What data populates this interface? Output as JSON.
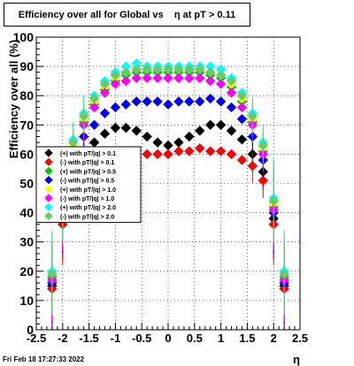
{
  "title": "Efficiency over all for Global vs    η at pT > 0.11",
  "timestamp": "Fri Feb 18 17:27:33 2022",
  "chart_data": {
    "type": "scatter",
    "xlabel": "η",
    "ylabel": "Efficiency over all (%)",
    "xlim": [
      -2.5,
      2.5
    ],
    "ylim": [
      0,
      100
    ],
    "xticks": [
      "-2.5",
      "-2",
      "-1.5",
      "-1",
      "-0.5",
      "0",
      "0.5",
      "1",
      "1.5",
      "2",
      "2.5"
    ],
    "yticks": [
      "0",
      "10",
      "20",
      "30",
      "40",
      "50",
      "60",
      "70",
      "80",
      "90",
      "100"
    ],
    "grid": true,
    "legend_position": "left-middle",
    "series": [
      {
        "name": "(+) with pT/|q| > 0.1",
        "color": "#000000",
        "x": [
          -2.2,
          -2.0,
          -1.8,
          -1.6,
          -1.4,
          -1.2,
          -1.0,
          -0.8,
          -0.6,
          -0.4,
          -0.2,
          0.0,
          0.2,
          0.4,
          0.6,
          0.8,
          1.0,
          1.2,
          1.4,
          1.6,
          1.8,
          2.0,
          2.2
        ],
        "y": [
          15,
          38,
          55,
          60,
          64,
          67,
          69,
          69,
          68,
          66,
          64,
          63,
          64,
          66,
          68,
          70,
          70,
          68,
          65,
          60,
          54,
          38,
          15
        ]
      },
      {
        "name": "(-) with pT/|q| > 0.1",
        "color": "#ff0000",
        "x": [
          -2.2,
          -2.0,
          -1.8,
          -1.6,
          -1.4,
          -1.2,
          -1.0,
          -0.8,
          -0.6,
          -0.4,
          -0.2,
          0.0,
          0.2,
          0.4,
          0.6,
          0.8,
          1.0,
          1.2,
          1.4,
          1.6,
          1.8,
          2.0,
          2.2
        ],
        "y": [
          14,
          36,
          52,
          56,
          59,
          60,
          61,
          61,
          60,
          60,
          60,
          60,
          61,
          61,
          62,
          61,
          61,
          60,
          58,
          56,
          51,
          36,
          14
        ]
      },
      {
        "name": "(+) with pT/|q| > 0.5",
        "color": "#00cc00",
        "x": [
          -2.2,
          -2.0,
          -1.8,
          -1.6,
          -1.4,
          -1.2,
          -1.0,
          -0.8,
          -0.6,
          -0.4,
          -0.2,
          0.0,
          0.2,
          0.4,
          0.6,
          0.8,
          1.0,
          1.2,
          1.4,
          1.6,
          1.8,
          2.0,
          2.2
        ],
        "y": [
          18,
          42,
          62,
          71,
          77,
          82,
          85,
          87,
          88,
          88,
          88,
          88,
          88,
          88,
          88,
          87,
          86,
          83,
          78,
          71,
          61,
          42,
          18
        ]
      },
      {
        "name": "(-) with pT/|q| > 0.5",
        "color": "#0000ff",
        "x": [
          -2.2,
          -2.0,
          -1.8,
          -1.6,
          -1.4,
          -1.2,
          -1.0,
          -0.8,
          -0.6,
          -0.4,
          -0.2,
          0.0,
          0.2,
          0.4,
          0.6,
          0.8,
          1.0,
          1.2,
          1.4,
          1.6,
          1.8,
          2.0,
          2.2
        ],
        "y": [
          16,
          40,
          60,
          66,
          70,
          74,
          76,
          77,
          78,
          78,
          78,
          77,
          78,
          78,
          78,
          79,
          78,
          76,
          72,
          66,
          58,
          40,
          16
        ]
      },
      {
        "name": "(+) with pT/|q| > 1.0",
        "color": "#ffff00",
        "x": [
          -2.2,
          -2.0,
          -1.8,
          -1.6,
          -1.4,
          -1.2,
          -1.0,
          -0.8,
          -0.6,
          -0.4,
          -0.2,
          0.0,
          0.2,
          0.4,
          0.6,
          0.8,
          1.0,
          1.2,
          1.4,
          1.6,
          1.8,
          2.0,
          2.2
        ],
        "y": [
          19,
          43,
          63,
          72,
          78,
          83,
          86,
          88,
          89,
          89,
          89,
          89,
          89,
          89,
          89,
          88,
          87,
          84,
          79,
          72,
          62,
          43,
          19
        ]
      },
      {
        "name": "(-) with pT/|q| > 1.0",
        "color": "#ff00ff",
        "x": [
          -2.2,
          -2.0,
          -1.8,
          -1.6,
          -1.4,
          -1.2,
          -1.0,
          -0.8,
          -0.6,
          -0.4,
          -0.2,
          0.0,
          0.2,
          0.4,
          0.6,
          0.8,
          1.0,
          1.2,
          1.4,
          1.6,
          1.8,
          2.0,
          2.2
        ],
        "y": [
          17,
          41,
          61,
          70,
          76,
          81,
          84,
          85,
          86,
          86,
          86,
          86,
          86,
          86,
          86,
          85,
          84,
          81,
          76,
          70,
          60,
          41,
          17
        ]
      },
      {
        "name": "(+) with pT/|q| > 2.0",
        "color": "#00ffff",
        "x": [
          -2.2,
          -2.0,
          -1.8,
          -1.6,
          -1.4,
          -1.2,
          -1.0,
          -0.8,
          -0.6,
          -0.4,
          -0.2,
          0.0,
          0.2,
          0.4,
          0.6,
          0.8,
          1.0,
          1.2,
          1.4,
          1.6,
          1.8,
          2.0,
          2.2
        ],
        "y": [
          20,
          45,
          65,
          74,
          80,
          85,
          88,
          90,
          91,
          90,
          90,
          90,
          90,
          90,
          90,
          90,
          89,
          86,
          81,
          74,
          64,
          45,
          20
        ]
      },
      {
        "name": "(-) with pT/|q| > 2.0",
        "color": "#66cc66",
        "x": [
          -2.2,
          -2.0,
          -1.8,
          -1.6,
          -1.4,
          -1.2,
          -1.0,
          -0.8,
          -0.6,
          -0.4,
          -0.2,
          0.0,
          0.2,
          0.4,
          0.6,
          0.8,
          1.0,
          1.2,
          1.4,
          1.6,
          1.8,
          2.0,
          2.2
        ],
        "y": [
          19,
          44,
          64,
          73,
          79,
          84,
          87,
          88,
          89,
          89,
          89,
          89,
          89,
          89,
          89,
          88,
          87,
          85,
          80,
          73,
          63,
          44,
          19
        ]
      }
    ]
  }
}
